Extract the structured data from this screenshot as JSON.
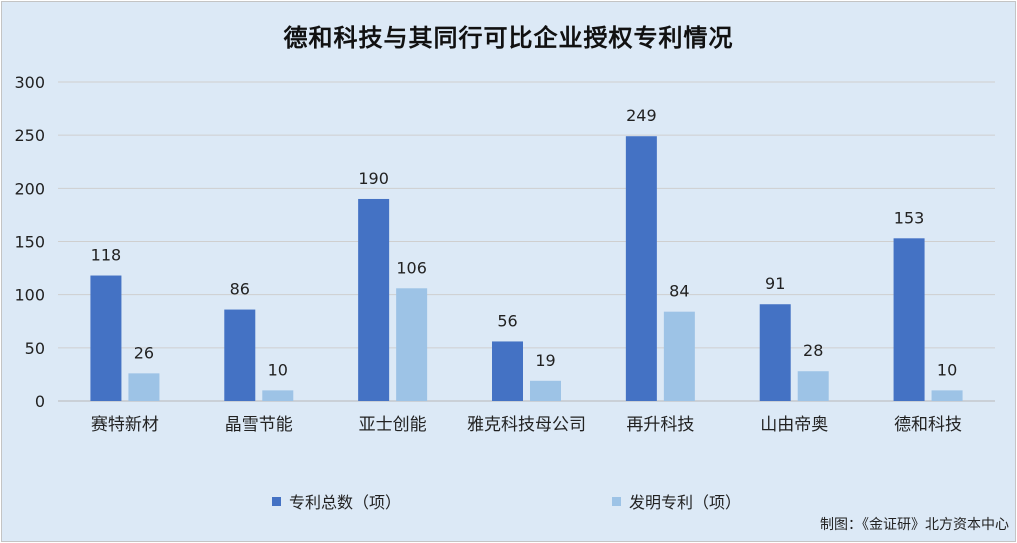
{
  "chart_data": {
    "type": "bar",
    "title": "德和科技与其同行可比企业授权专利情况",
    "categories": [
      "赛特新材",
      "晶雪节能",
      "亚士创能",
      "雅克科技母公司",
      "再升科技",
      "山由帝奥",
      "德和科技"
    ],
    "series": [
      {
        "name": "专利总数（项）",
        "color": "#4472c4",
        "values": [
          118,
          86,
          190,
          56,
          249,
          91,
          153
        ]
      },
      {
        "name": "发明专利（项）",
        "color": "#9dc3e6",
        "values": [
          26,
          10,
          106,
          19,
          84,
          28,
          10
        ]
      }
    ],
    "ylim": [
      0,
      300
    ],
    "yticks": [
      0,
      50,
      100,
      150,
      200,
      250,
      300
    ],
    "grid": true,
    "legend_position": "bottom"
  },
  "credit": "制图：《金证研》北方资本中心"
}
